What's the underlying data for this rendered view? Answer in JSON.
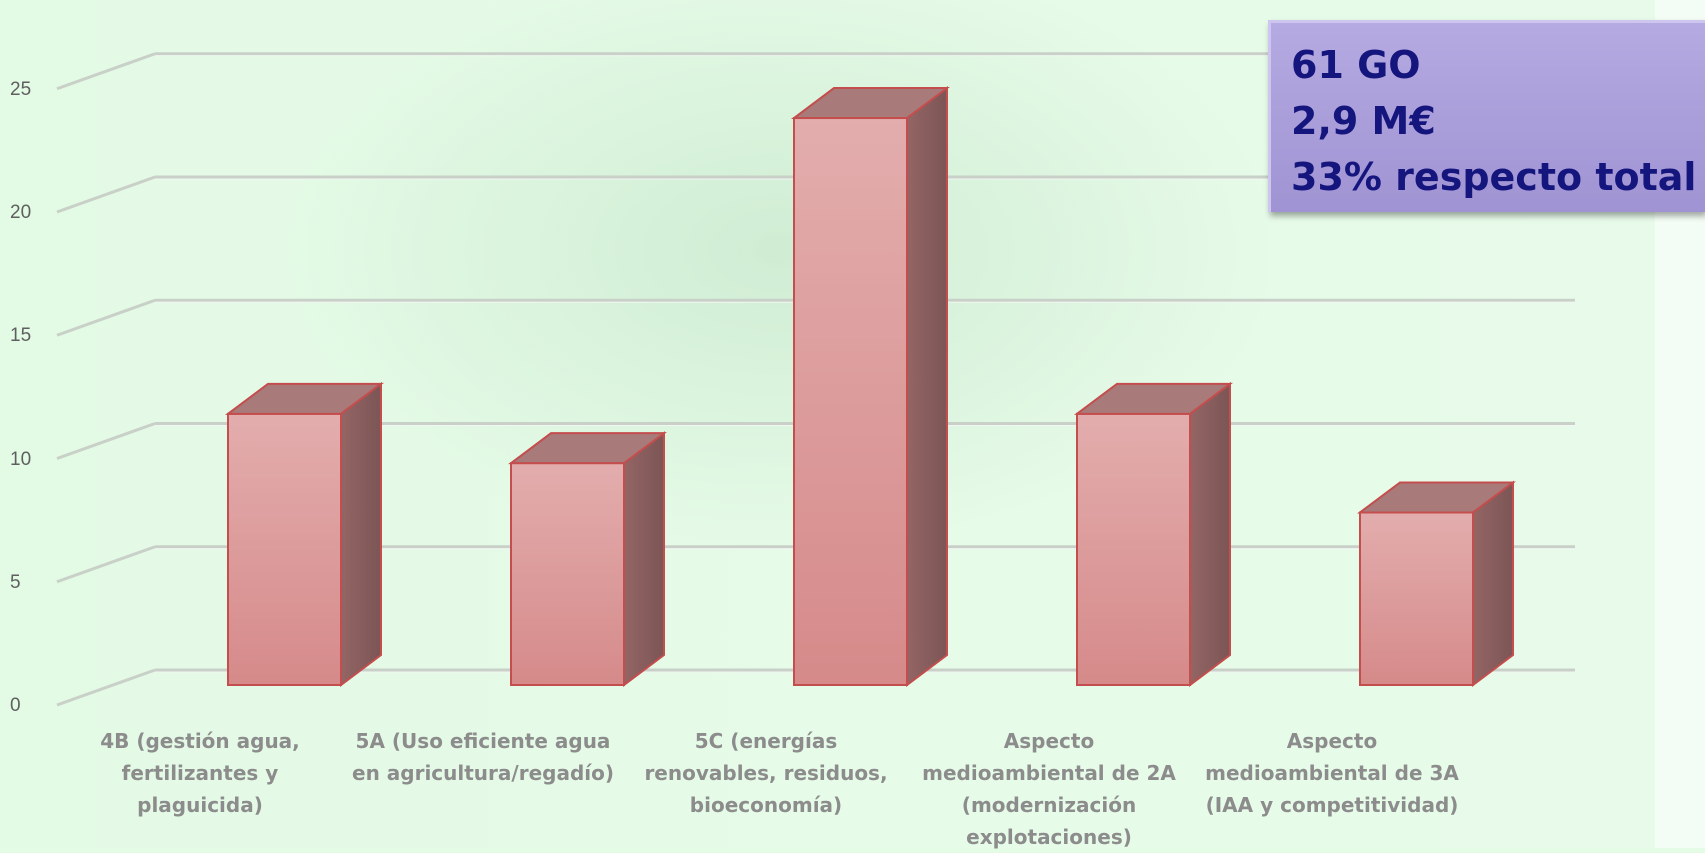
{
  "chart_data": {
    "type": "bar",
    "style": "3d-column",
    "categories": [
      "4B (gestión agua, fertilizantes y plaguicida)",
      "5A (Uso eficiente agua en agricultura/regadío)",
      "5C (energías renovables, residuos, bioeconomía)",
      "Aspecto medioambiental de 2A (modernización explotaciones)",
      "Aspecto medioambiental de 3A (IAA y competitividad)"
    ],
    "category_lines": [
      [
        "4B (gestión agua,",
        "fertilizantes y",
        "plaguicida)"
      ],
      [
        "5A (Uso eficiente agua",
        "en agricultura/regadío)"
      ],
      [
        "5C (energías",
        "renovables, residuos,",
        "bioeconomía)"
      ],
      [
        "Aspecto",
        "medioambiental de 2A",
        "(modernización",
        "explotaciones)"
      ],
      [
        "Aspecto",
        "medioambiental de 3A",
        "(IAA y competitividad)"
      ]
    ],
    "values": [
      11,
      9,
      23,
      11,
      7
    ],
    "yticks": [
      "0",
      "5",
      "10",
      "15",
      "20",
      "25"
    ],
    "ylim": [
      0,
      27
    ],
    "grid": true,
    "bar_color": "#dc9e9e",
    "bar_edge_color": "#c44d4d"
  },
  "info_box": {
    "lines": [
      "61 GO",
      "2,9 M€",
      "33% respecto total"
    ],
    "background_color": "#ab9fdc",
    "text_color": "#15157e"
  }
}
